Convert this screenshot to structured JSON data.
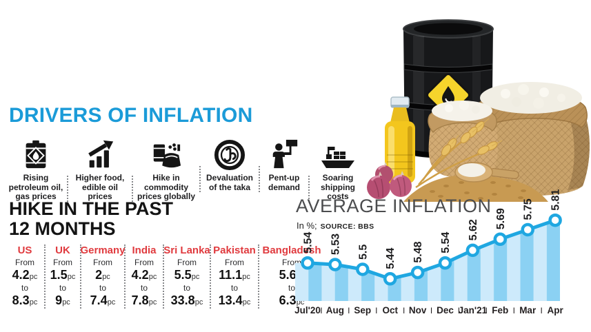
{
  "drivers": {
    "title": "DRIVERS OF INFLATION",
    "title_color": "#1b9bd8",
    "items": [
      {
        "icon": "oil-barrel-icon",
        "label": "Rising petroleum oil, gas prices"
      },
      {
        "icon": "growth-arrow-icon",
        "label": "Higher food, edible oil prices"
      },
      {
        "icon": "commodities-icon",
        "label": "Hike in commodity prices globally"
      },
      {
        "icon": "taka-coin-icon",
        "label": "Devaluation of the taka"
      },
      {
        "icon": "protest-sign-icon",
        "label": "Pent-up demand"
      },
      {
        "icon": "cargo-ship-icon",
        "label": "Soaring shipping costs"
      }
    ]
  },
  "hike": {
    "title_line1": "HIKE IN THE PAST",
    "title_line2": "12 MONTHS",
    "from_label": "From",
    "to_label": "to",
    "unit": "pc",
    "name_color": "#e03a3e",
    "countries": [
      {
        "name": "US",
        "from": "4.2",
        "to": "8.3"
      },
      {
        "name": "UK",
        "from": "1.5",
        "to": "9"
      },
      {
        "name": "Germany",
        "from": "2",
        "to": "7.4"
      },
      {
        "name": "India",
        "from": "4.2",
        "to": "7.8"
      },
      {
        "name": "Sri Lanka",
        "from": "5.5",
        "to": "33.8"
      },
      {
        "name": "Pakistan",
        "from": "11.1",
        "to": "13.4"
      },
      {
        "name": "Bangladesh",
        "from": "5.6",
        "to": "6.3"
      }
    ]
  },
  "chart_data": {
    "type": "line",
    "title": "AVERAGE INFLATION",
    "units_label": "In %;",
    "source_label": "SOURCE: BBS",
    "x": [
      "Jul'20",
      "Aug",
      "Sep",
      "Oct",
      "Nov",
      "Dec",
      "Jan'21",
      "Feb",
      "Mar",
      "Apr"
    ],
    "values": [
      5.54,
      5.53,
      5.5,
      5.44,
      5.48,
      5.54,
      5.62,
      5.69,
      5.75,
      5.81
    ],
    "value_labels": [
      "5.54",
      "5.53",
      "5.5",
      "5.44",
      "5.48",
      "5.54",
      "5.62",
      "5.69",
      "5.75",
      "5.81"
    ],
    "month_separator": "I",
    "ylim": [
      5.3,
      5.9
    ],
    "grid": false,
    "legend": false,
    "value_label_style": "rotated-90-bold",
    "line_color": "#1fa7e1",
    "marker": "open-circle",
    "marker_fill": "#ffffff",
    "area_stripe_colors": [
      "#cdeafb",
      "#8bd1f3"
    ],
    "axis_text_color": "#231f20"
  },
  "illustration": {
    "name": "commodities-photo-montage",
    "objects": [
      "black-oil-drum",
      "flammable-hazard-diamond",
      "sack-of-rice",
      "sack-of-flour",
      "cooking-oil-bottle",
      "red-onions",
      "wheat-stalks",
      "grain-pile",
      "flour-scoop"
    ]
  }
}
